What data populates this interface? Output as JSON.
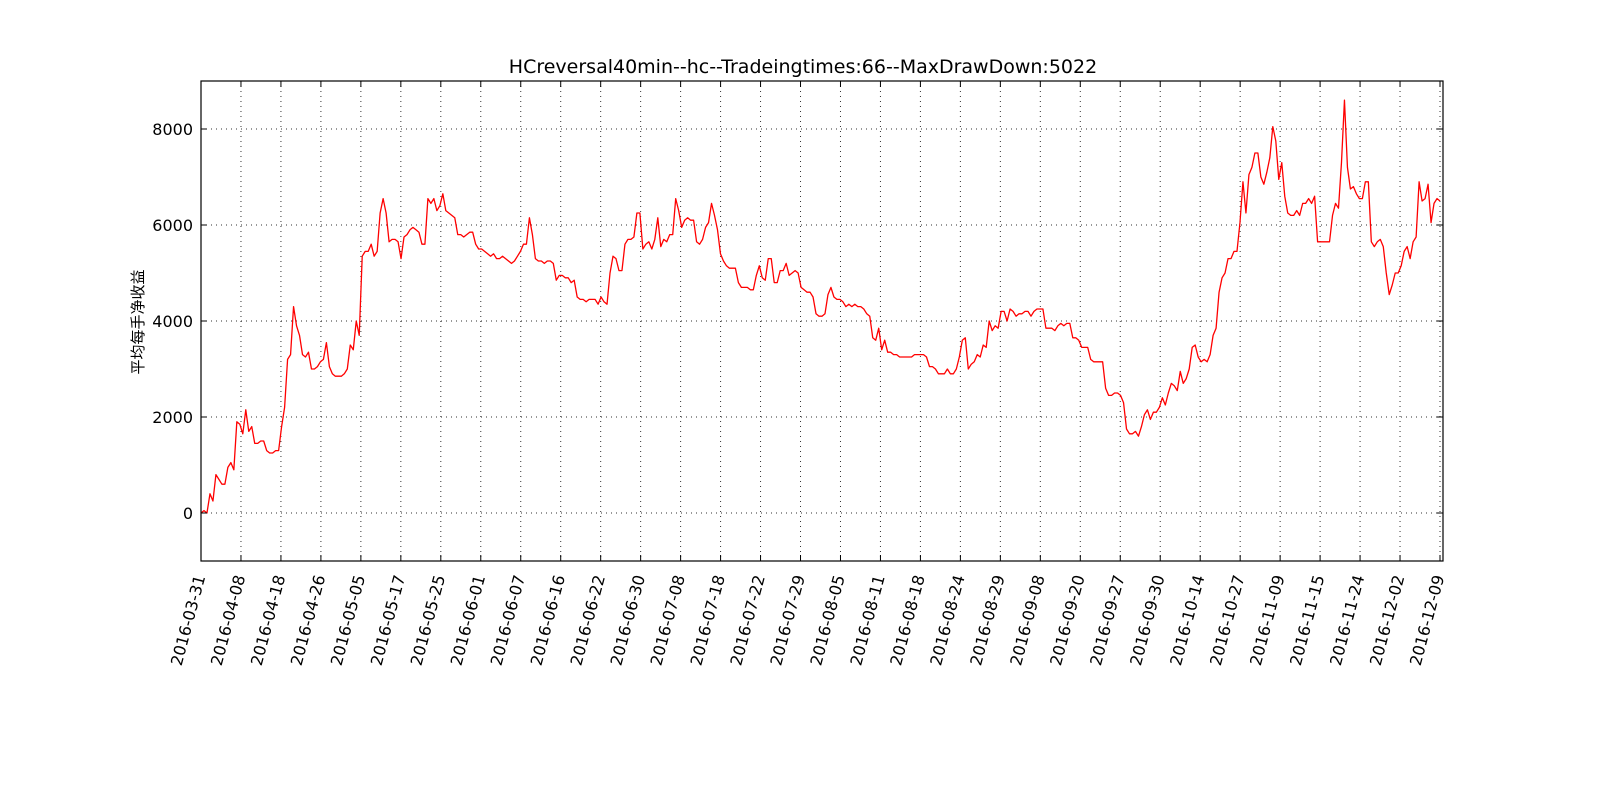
{
  "chart_data": {
    "type": "line",
    "title": "HCreversal40min--hc--Tradeingtimes:66--MaxDrawDown:5022",
    "xlabel": "",
    "ylabel": "平均每手净收益",
    "ylim": [
      -1000,
      9000
    ],
    "yticks": [
      0,
      2000,
      4000,
      6000,
      8000
    ],
    "xtick_labels": [
      "2016-03-31",
      "2016-04-08",
      "2016-04-18",
      "2016-04-26",
      "2016-05-05",
      "2016-05-17",
      "2016-05-25",
      "2016-06-01",
      "2016-06-07",
      "2016-06-16",
      "2016-06-22",
      "2016-06-30",
      "2016-07-08",
      "2016-07-18",
      "2016-07-22",
      "2016-07-29",
      "2016-08-05",
      "2016-08-11",
      "2016-08-18",
      "2016-08-24",
      "2016-08-29",
      "2016-09-08",
      "2016-09-20",
      "2016-09-27",
      "2016-09-30",
      "2016-10-14",
      "2016-10-27",
      "2016-11-09",
      "2016-11-15",
      "2016-11-24",
      "2016-12-02",
      "2016-12-09"
    ],
    "grid": true,
    "series": [
      {
        "color": "#ff0000",
        "values": [
          0,
          50,
          0,
          400,
          250,
          800,
          700,
          600,
          600,
          950,
          1050,
          900,
          1900,
          1850,
          1650,
          2150,
          1700,
          1800,
          1450,
          1450,
          1500,
          1500,
          1300,
          1250,
          1250,
          1300,
          1300,
          1800,
          2200,
          3200,
          3300,
          4300,
          3900,
          3700,
          3300,
          3250,
          3350,
          3000,
          3000,
          3050,
          3150,
          3200,
          3550,
          3050,
          2900,
          2850,
          2850,
          2850,
          2900,
          3000,
          3500,
          3400,
          4000,
          3700,
          5350,
          5450,
          5450,
          5600,
          5350,
          5450,
          6250,
          6550,
          6250,
          5650,
          5700,
          5700,
          5650,
          5300,
          5750,
          5800,
          5900,
          5950,
          5900,
          5850,
          5600,
          5600,
          6550,
          6450,
          6550,
          6300,
          6400,
          6650,
          6300,
          6250,
          6200,
          6150,
          5800,
          5800,
          5750,
          5800,
          5850,
          5850,
          5600,
          5500,
          5500,
          5450,
          5400,
          5350,
          5400,
          5300,
          5300,
          5350,
          5300,
          5250,
          5200,
          5250,
          5350,
          5450,
          5600,
          5600,
          6150,
          5800,
          5300,
          5250,
          5250,
          5200,
          5250,
          5250,
          5200,
          4850,
          4950,
          4950,
          4900,
          4900,
          4800,
          4850,
          4500,
          4450,
          4450,
          4400,
          4450,
          4450,
          4450,
          4350,
          4500,
          4400,
          4350,
          5000,
          5350,
          5300,
          5050,
          5050,
          5600,
          5700,
          5700,
          5750,
          6250,
          6250,
          5500,
          5600,
          5650,
          5500,
          5700,
          6150,
          5550,
          5700,
          5650,
          5800,
          5800,
          6550,
          6300,
          5950,
          6100,
          6150,
          6100,
          6100,
          5650,
          5600,
          5700,
          5950,
          6050,
          6450,
          6200,
          5900,
          5400,
          5250,
          5150,
          5100,
          5100,
          5100,
          4800,
          4700,
          4700,
          4700,
          4650,
          4650,
          4950,
          5150,
          4900,
          4850,
          5300,
          5300,
          4800,
          4800,
          5050,
          5050,
          5200,
          4950,
          5000,
          5050,
          5000,
          4700,
          4650,
          4600,
          4600,
          4500,
          4150,
          4100,
          4100,
          4150,
          4550,
          4700,
          4500,
          4450,
          4450,
          4400,
          4300,
          4350,
          4300,
          4350,
          4300,
          4300,
          4250,
          4150,
          4100,
          3650,
          3600,
          3850,
          3400,
          3600,
          3350,
          3350,
          3300,
          3300,
          3250,
          3250,
          3250,
          3250,
          3250,
          3300,
          3300,
          3300,
          3300,
          3250,
          3050,
          3050,
          3000,
          2900,
          2900,
          2900,
          3000,
          2900,
          2900,
          3000,
          3250,
          3600,
          3650,
          3000,
          3100,
          3150,
          3300,
          3250,
          3500,
          3450,
          4000,
          3800,
          3900,
          3850,
          4200,
          4200,
          4000,
          4250,
          4200,
          4100,
          4150,
          4150,
          4200,
          4200,
          4100,
          4200,
          4250,
          4250,
          4250,
          3850,
          3850,
          3850,
          3800,
          3900,
          3950,
          3900,
          3950,
          3950,
          3650,
          3650,
          3600,
          3450,
          3450,
          3450,
          3200,
          3150,
          3150,
          3150,
          3150,
          2600,
          2450,
          2450,
          2500,
          2500,
          2450,
          2300,
          1750,
          1650,
          1650,
          1700,
          1600,
          1800,
          2050,
          2150,
          1950,
          2100,
          2100,
          2200,
          2400,
          2250,
          2500,
          2700,
          2650,
          2550,
          2950,
          2700,
          2800,
          3000,
          3450,
          3500,
          3250,
          3150,
          3200,
          3150,
          3300,
          3700,
          3850,
          4600,
          4900,
          5000,
          5300,
          5300,
          5450,
          5450,
          6050,
          6900,
          6250,
          7050,
          7200,
          7500,
          7500,
          7000,
          6850,
          7100,
          7400,
          8050,
          7750,
          6950,
          7300,
          6600,
          6250,
          6200,
          6200,
          6300,
          6200,
          6450,
          6450,
          6550,
          6450,
          6600,
          5650,
          5650,
          5650,
          5650,
          5650,
          6200,
          6450,
          6350,
          7300,
          8600,
          7200,
          6750,
          6800,
          6650,
          6550,
          6550,
          6900,
          6900,
          5650,
          5550,
          5650,
          5700,
          5550,
          5000,
          4550,
          4750,
          5000,
          5000,
          5150,
          5450,
          5550,
          5300,
          5650,
          5750,
          6900,
          6500,
          6550,
          6850,
          6050,
          6450,
          6550,
          6500
        ]
      }
    ]
  }
}
